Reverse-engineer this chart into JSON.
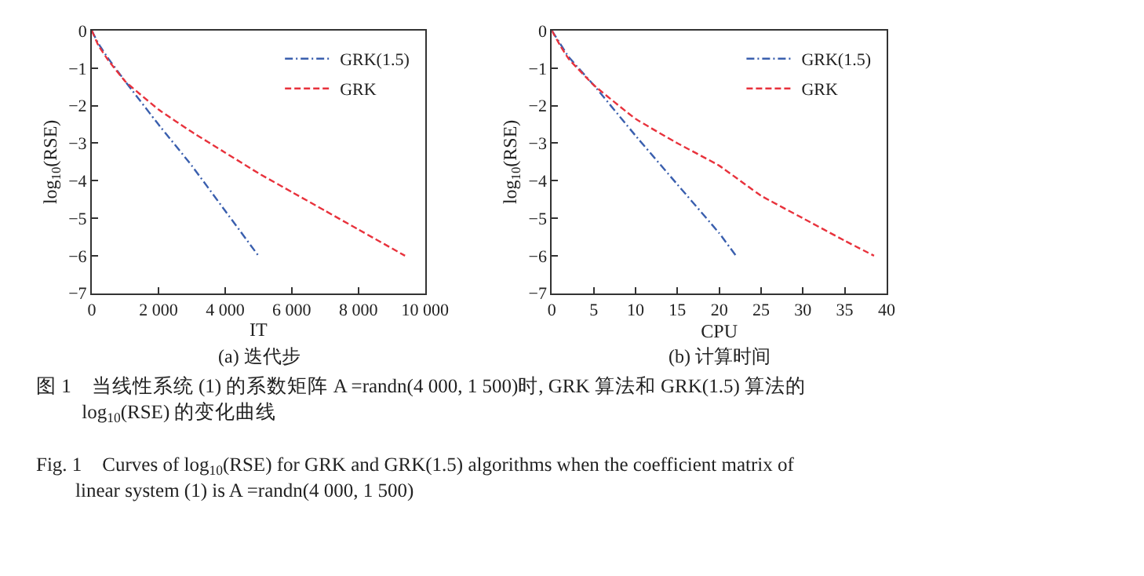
{
  "chart_data": [
    {
      "type": "line",
      "title": "(a) 迭代步",
      "xlabel": "IT",
      "ylabel": "log$_{10}$(RSE)",
      "legend": "top right",
      "xlim": [
        0,
        10000
      ],
      "xticks": [
        0,
        {
          "value": 2000,
          "label": "2 000"
        },
        {
          "value": 4000,
          "label": "4 000"
        },
        {
          "value": 6000,
          "label": "6 000"
        },
        {
          "value": 8000,
          "label": "8 000"
        },
        {
          "value": 10000,
          "label": "10 000"
        }
      ],
      "ylim": [
        -7,
        0
      ],
      "yticks": [
        {
          "value": -7,
          "label": "−7"
        },
        {
          "value": -6,
          "label": "−6"
        },
        {
          "value": -5,
          "label": "−5"
        },
        {
          "value": -4,
          "label": "−4"
        },
        {
          "value": -3,
          "label": "−3"
        },
        {
          "value": -2,
          "label": "−2"
        },
        {
          "value": -1,
          "label": "−1"
        },
        0
      ],
      "series": [
        {
          "name": "GRK(1.5)",
          "color": "#3a5fae",
          "line_style": "dashdot",
          "x": [
            0,
            200,
            500,
            1000,
            2000,
            3000,
            4000,
            5000
          ],
          "values": [
            0,
            -0.35,
            -0.75,
            -1.35,
            -2.5,
            -3.6,
            -4.8,
            -6
          ]
        },
        {
          "name": "GRK",
          "color": "#e8323c",
          "line_style": "dashed",
          "x": [
            0,
            200,
            500,
            1000,
            2000,
            3000,
            4000,
            5000,
            6000,
            7000,
            8000,
            9400
          ],
          "values": [
            0,
            -0.4,
            -0.8,
            -1.35,
            -2.1,
            -2.7,
            -3.25,
            -3.8,
            -4.3,
            -4.8,
            -5.3,
            -6
          ]
        }
      ],
      "annotations": [
        "图 1　当线性系统 (1) 的系数矩阵 A =randn(4 000, 1 500)时, GRK 算法和 GRK(1.5) 算法的 log$_{10}$(RSE) 的变化曲线",
        "Fig. 1　Curves of log$_{10}$(RSE) for GRK and GRK(1.5) algorithms when the coefficient matrix of linear system (1) is A =randn(4 000, 1 500)"
      ]
    },
    {
      "type": "line",
      "title": "(b) 计算时间",
      "xlabel": "CPU",
      "ylabel": "log$_{10}$(RSE)",
      "legend": "top right",
      "xlim": [
        0,
        40
      ],
      "xticks": [
        0,
        5,
        10,
        15,
        20,
        25,
        30,
        35,
        40
      ],
      "ylim": [
        -7,
        0
      ],
      "yticks": [
        {
          "value": -7,
          "label": "−7"
        },
        {
          "value": -6,
          "label": "−6"
        },
        {
          "value": -5,
          "label": "−5"
        },
        {
          "value": -4,
          "label": "−4"
        },
        {
          "value": -3,
          "label": "−3"
        },
        {
          "value": -2,
          "label": "−2"
        },
        {
          "value": -1,
          "label": "−1"
        },
        0
      ],
      "series": [
        {
          "name": "GRK(1.5)",
          "color": "#3a5fae",
          "line_style": "dashdot",
          "x": [
            0,
            1,
            2,
            5,
            10,
            15,
            20,
            22
          ],
          "values": [
            0,
            -0.35,
            -0.7,
            -1.45,
            -2.8,
            -4.1,
            -5.4,
            -6
          ]
        },
        {
          "name": "GRK",
          "color": "#e8323c",
          "line_style": "dashed",
          "x": [
            0,
            1,
            2,
            5,
            10,
            15,
            20,
            25,
            30,
            35,
            38.5
          ],
          "values": [
            0,
            -0.4,
            -0.75,
            -1.45,
            -2.35,
            -3.0,
            -3.6,
            -4.4,
            -5.0,
            -5.6,
            -6
          ]
        }
      ]
    }
  ]
}
